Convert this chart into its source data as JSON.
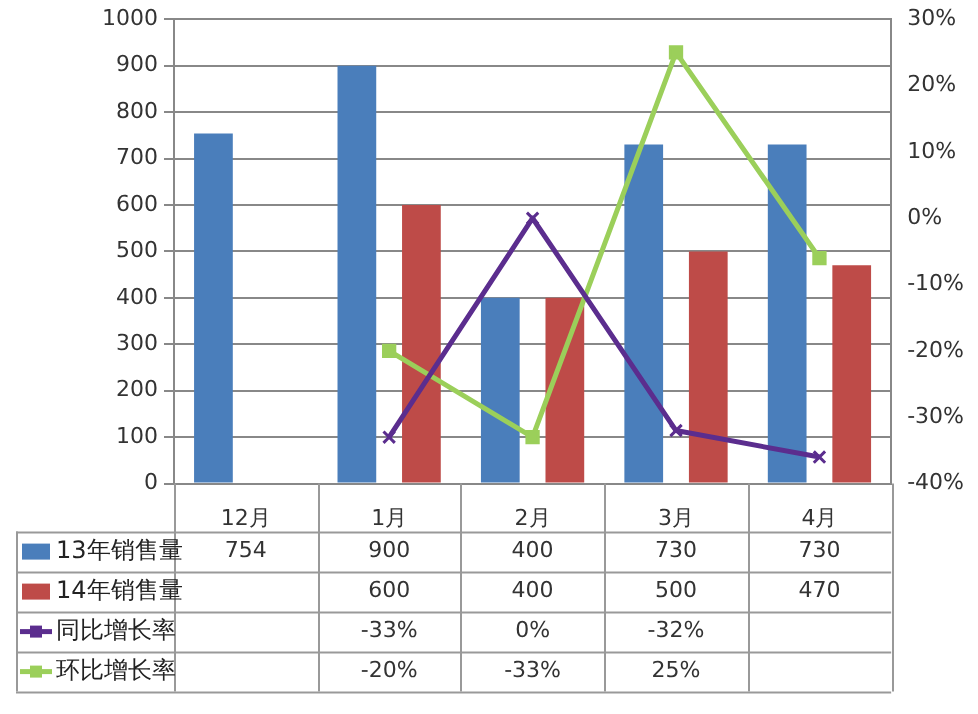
{
  "chart_data": {
    "type": "bar",
    "categories": [
      "12月",
      "1月",
      "2月",
      "3月",
      "4月"
    ],
    "series": [
      {
        "name": "13年销售量",
        "color": "#4a7ebb",
        "values": [
          754,
          900,
          400,
          730,
          730
        ],
        "value_labels": [
          "754",
          "900",
          "400",
          "730",
          "730"
        ]
      },
      {
        "name": "14年销售量",
        "color": "#be4b48",
        "values": [
          null,
          600,
          400,
          500,
          470
        ],
        "value_labels": [
          null,
          "600",
          "400",
          "500",
          "470"
        ]
      },
      {
        "name": "同比增长率",
        "type": "line",
        "axis": "y2",
        "color": "#5b2d8e",
        "marker": "cross",
        "values": [
          null,
          -33,
          0,
          -32,
          -36
        ],
        "value_labels": [
          null,
          "-33%",
          "0%",
          "-32%",
          null
        ]
      },
      {
        "name": "环比增长率",
        "type": "line",
        "axis": "y2",
        "color": "#9bcf5a",
        "marker": "square",
        "values": [
          null,
          -20,
          -33,
          25,
          -6
        ],
        "value_labels": [
          null,
          "-20%",
          "-33%",
          "25%",
          null
        ]
      }
    ],
    "ylim": [
      0,
      1000
    ],
    "yticks": [
      0,
      100,
      200,
      300,
      400,
      500,
      600,
      700,
      800,
      900,
      1000
    ],
    "y2lim": [
      -40,
      30
    ],
    "y2ticks": [
      {
        "value": -40,
        "label": "-40%"
      },
      {
        "value": -30,
        "label": "-30%"
      },
      {
        "value": -20,
        "label": "-20%"
      },
      {
        "value": -10,
        "label": "-10%"
      },
      {
        "value": 0,
        "label": "0%"
      },
      {
        "value": 10,
        "label": "10%"
      },
      {
        "value": 20,
        "label": "20%"
      },
      {
        "value": 30,
        "label": "30%"
      }
    ],
    "grid": "y",
    "legend": "bottom left"
  }
}
